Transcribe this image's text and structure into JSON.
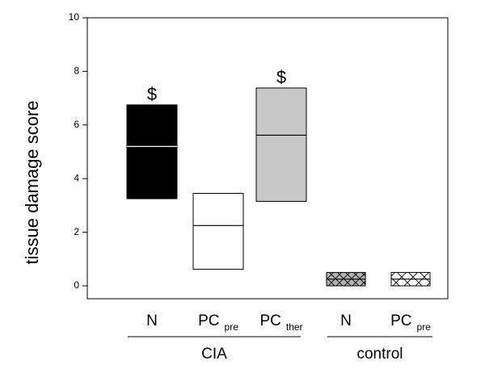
{
  "chart_data": {
    "type": "box",
    "ylabel": "tissue damage score",
    "ylim": [
      0,
      10
    ],
    "yticks": [
      0,
      2,
      4,
      6,
      8,
      10
    ],
    "grid": false,
    "series": [
      {
        "label": "N",
        "sub": "",
        "group": "CIA",
        "low": 3.25,
        "median": 5.2,
        "high": 6.75,
        "fill": "solid",
        "color": "#000000",
        "median_color": "#ffffff",
        "annotation": "$"
      },
      {
        "label": "PC",
        "sub": "pre",
        "group": "CIA",
        "low": 0.62,
        "median": 2.25,
        "high": 3.45,
        "fill": "solid",
        "color": "#ffffff",
        "median_color": "#000000",
        "annotation": ""
      },
      {
        "label": "PC",
        "sub": "ther",
        "group": "CIA",
        "low": 3.15,
        "median": 5.62,
        "high": 7.38,
        "fill": "solid",
        "color": "#c8c8c8",
        "median_color": "#000000",
        "annotation": "$"
      },
      {
        "label": "N",
        "sub": "",
        "group": "control",
        "low": 0.0,
        "median": 0.25,
        "high": 0.5,
        "fill": "crosshatch",
        "color": "#b4b4b4",
        "median_color": "#000000",
        "annotation": ""
      },
      {
        "label": "PC",
        "sub": "pre",
        "group": "control",
        "low": 0.0,
        "median": 0.25,
        "high": 0.5,
        "fill": "crosshatch",
        "color": "#ffffff",
        "median_color": "#000000",
        "annotation": ""
      }
    ],
    "groups": [
      {
        "name": "CIA"
      },
      {
        "name": "control"
      }
    ]
  }
}
